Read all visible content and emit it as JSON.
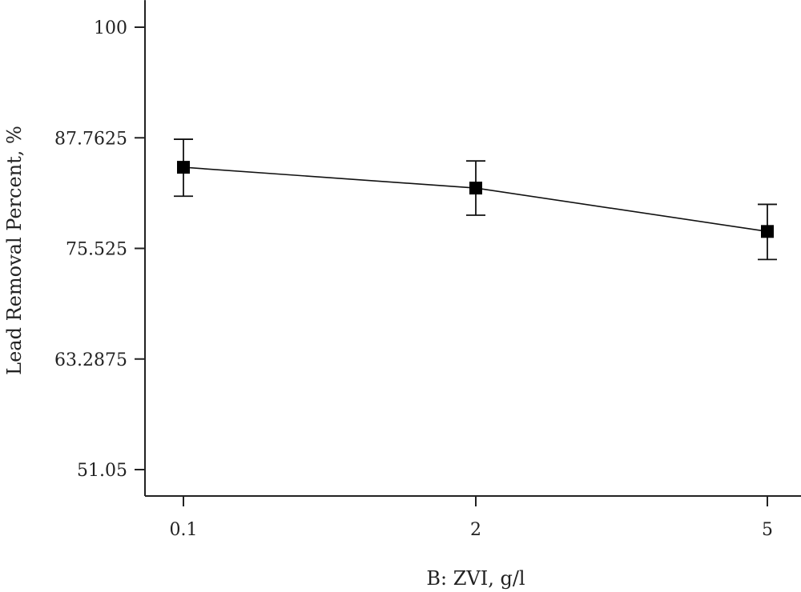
{
  "chart_data": {
    "type": "line",
    "title": "",
    "xlabel": "B: ZVI, g/l",
    "ylabel": "Lead Removal Percent, %",
    "categories": [
      "0.1",
      "2",
      "5"
    ],
    "y_ticks": [
      "51.05",
      "63.2875",
      "75.525",
      "87.7625",
      "100"
    ],
    "ylim": [
      45.5,
      103
    ],
    "series": [
      {
        "values": [
          84.5,
          82.2,
          77.4
        ],
        "error_low": [
          81.3,
          79.2,
          74.3
        ],
        "error_high": [
          87.6,
          85.2,
          80.4
        ]
      }
    ],
    "grid": false,
    "legend": "none"
  }
}
